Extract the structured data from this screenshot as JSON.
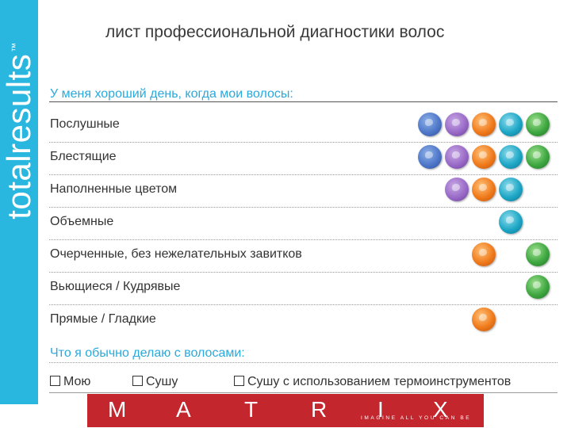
{
  "sidebar": {
    "brand": "totalresults",
    "trademark": "™"
  },
  "title": "лист профессиональной диагностики волос",
  "section1": {
    "heading": "У меня хороший день, когда мои волосы:"
  },
  "rows": [
    {
      "label": "Послушные",
      "dots": [
        "blue",
        "purple",
        "orange",
        "teal",
        "green"
      ]
    },
    {
      "label": "Блестящие",
      "dots": [
        "blue",
        "purple",
        "orange",
        "teal",
        "green"
      ]
    },
    {
      "label": "Наполненные цветом",
      "dots": [
        "purple",
        "orange",
        "teal"
      ]
    },
    {
      "label": "Объемные",
      "dots": [
        "teal"
      ]
    },
    {
      "label": "Очерченные, без нежелательных завитков",
      "dots": [
        "orange",
        "green"
      ]
    },
    {
      "label": "Вьющиеся / Кудрявые",
      "dots": [
        "green"
      ]
    },
    {
      "label": "Прямые / Гладкие",
      "dots": [
        "orange"
      ]
    }
  ],
  "section2": {
    "heading": "Что я обычно делаю с волосами:",
    "options": [
      "Мою",
      "Сушу",
      "Сушу с использованием термоинструментов"
    ]
  },
  "banner": {
    "letters": [
      "M",
      "A",
      "T",
      "R",
      "I",
      "X"
    ],
    "tagline": "IMAGINE ALL YOU CAN BE",
    "color": "#c4262e"
  },
  "colors": {
    "accent": "#29b6df",
    "heading": "#29a9dc"
  }
}
